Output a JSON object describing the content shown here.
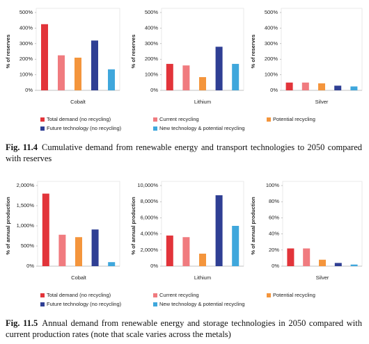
{
  "chart_data": [
    {
      "type": "bar",
      "categories": [
        "Cobalt"
      ],
      "y_label": "% of reserves",
      "ylim": [
        0,
        500
      ],
      "yticks": [
        {
          "value": 0,
          "label": "0%"
        },
        {
          "value": 100,
          "label": "100%"
        },
        {
          "value": 200,
          "label": "200%"
        },
        {
          "value": 300,
          "label": "300%"
        },
        {
          "value": 400,
          "label": "400%"
        },
        {
          "value": 500,
          "label": "500%"
        }
      ],
      "series": [
        {
          "color": "#e2343a",
          "values": [
            425
          ]
        },
        {
          "color": "#f07b7f",
          "values": [
            225
          ]
        },
        {
          "color": "#f4953c",
          "values": [
            210
          ]
        },
        {
          "color": "#2f3f94",
          "values": [
            320
          ]
        },
        {
          "color": "#3fa7dc",
          "values": [
            135
          ]
        }
      ]
    },
    {
      "type": "bar",
      "categories": [
        "Lithium"
      ],
      "y_label": "% of reserves",
      "ylim": [
        0,
        500
      ],
      "yticks": [
        {
          "value": 0,
          "label": "0%"
        },
        {
          "value": 100,
          "label": "100%"
        },
        {
          "value": 200,
          "label": "200%"
        },
        {
          "value": 300,
          "label": "300%"
        },
        {
          "value": 400,
          "label": "400%"
        },
        {
          "value": 500,
          "label": "500%"
        }
      ],
      "series": [
        {
          "color": "#e2343a",
          "values": [
            170
          ]
        },
        {
          "color": "#f07b7f",
          "values": [
            160
          ]
        },
        {
          "color": "#f4953c",
          "values": [
            85
          ]
        },
        {
          "color": "#2f3f94",
          "values": [
            280
          ]
        },
        {
          "color": "#3fa7dc",
          "values": [
            170
          ]
        }
      ]
    },
    {
      "type": "bar",
      "categories": [
        "Silver"
      ],
      "y_label": "% of reserves",
      "ylim": [
        0,
        500
      ],
      "yticks": [
        {
          "value": 0,
          "label": "0%"
        },
        {
          "value": 100,
          "label": "100%"
        },
        {
          "value": 200,
          "label": "200%"
        },
        {
          "value": 300,
          "label": "300%"
        },
        {
          "value": 400,
          "label": "400%"
        },
        {
          "value": 500,
          "label": "500%"
        }
      ],
      "series": [
        {
          "color": "#e2343a",
          "values": [
            50
          ]
        },
        {
          "color": "#f07b7f",
          "values": [
            50
          ]
        },
        {
          "color": "#f4953c",
          "values": [
            45
          ]
        },
        {
          "color": "#2f3f94",
          "values": [
            30
          ]
        },
        {
          "color": "#3fa7dc",
          "values": [
            25
          ]
        }
      ]
    },
    {
      "type": "bar",
      "categories": [
        "Cobalt"
      ],
      "y_label": "% of annual production",
      "ylim": [
        0,
        2000
      ],
      "yticks": [
        {
          "value": 0,
          "label": "0%"
        },
        {
          "value": 500,
          "label": "500%"
        },
        {
          "value": 1000,
          "label": "1,000%"
        },
        {
          "value": 1500,
          "label": "1,500%"
        },
        {
          "value": 2000,
          "label": "2,000%"
        }
      ],
      "series": [
        {
          "color": "#e2343a",
          "values": [
            1800
          ]
        },
        {
          "color": "#f07b7f",
          "values": [
            780
          ]
        },
        {
          "color": "#f4953c",
          "values": [
            720
          ]
        },
        {
          "color": "#2f3f94",
          "values": [
            910
          ]
        },
        {
          "color": "#3fa7dc",
          "values": [
            100
          ]
        }
      ]
    },
    {
      "type": "bar",
      "categories": [
        "Lithium"
      ],
      "y_label": "% of annual production",
      "ylim": [
        0,
        10000
      ],
      "yticks": [
        {
          "value": 0,
          "label": "0%"
        },
        {
          "value": 2000,
          "label": "2,000%"
        },
        {
          "value": 4000,
          "label": "4,000%"
        },
        {
          "value": 6000,
          "label": "6,000%"
        },
        {
          "value": 8000,
          "label": "8,000%"
        },
        {
          "value": 10000,
          "label": "10,000%"
        }
      ],
      "series": [
        {
          "color": "#e2343a",
          "values": [
            3800
          ]
        },
        {
          "color": "#f07b7f",
          "values": [
            3600
          ]
        },
        {
          "color": "#f4953c",
          "values": [
            1550
          ]
        },
        {
          "color": "#2f3f94",
          "values": [
            8800
          ]
        },
        {
          "color": "#3fa7dc",
          "values": [
            5000
          ]
        }
      ]
    },
    {
      "type": "bar",
      "categories": [
        "Silver"
      ],
      "y_label": "% of annual production",
      "ylim": [
        0,
        100
      ],
      "yticks": [
        {
          "value": 0,
          "label": "0%"
        },
        {
          "value": 20,
          "label": "20%"
        },
        {
          "value": 40,
          "label": "40%"
        },
        {
          "value": 60,
          "label": "60%"
        },
        {
          "value": 80,
          "label": "80%"
        },
        {
          "value": 100,
          "label": "100%"
        }
      ],
      "series": [
        {
          "color": "#e2343a",
          "values": [
            22
          ]
        },
        {
          "color": "#f07b7f",
          "values": [
            22
          ]
        },
        {
          "color": "#f4953c",
          "values": [
            8
          ]
        },
        {
          "color": "#2f3f94",
          "values": [
            4
          ]
        },
        {
          "color": "#3fa7dc",
          "values": [
            2
          ]
        }
      ]
    }
  ],
  "legends": [
    [
      "Total demand (no recycling)",
      "Current recycling",
      "Potential recycling",
      "Future technology (no recycling)",
      "New technology & potential recycling"
    ],
    [
      "Total demand (no recycling)",
      "Current recycling",
      "Potential recycling",
      "Future technology (no recycling)",
      "New technology & potential recycling"
    ]
  ],
  "captions": [
    {
      "label": "Fig. 11.4",
      "text": "Cumulative demand from renewable energy and transport technologies to 2050 compared with reserves"
    },
    {
      "label": "Fig. 11.5",
      "text": "Annual demand from renewable energy and storage technologies in 2050 compared with current production rates (note that scale varies across the metals)"
    }
  ]
}
